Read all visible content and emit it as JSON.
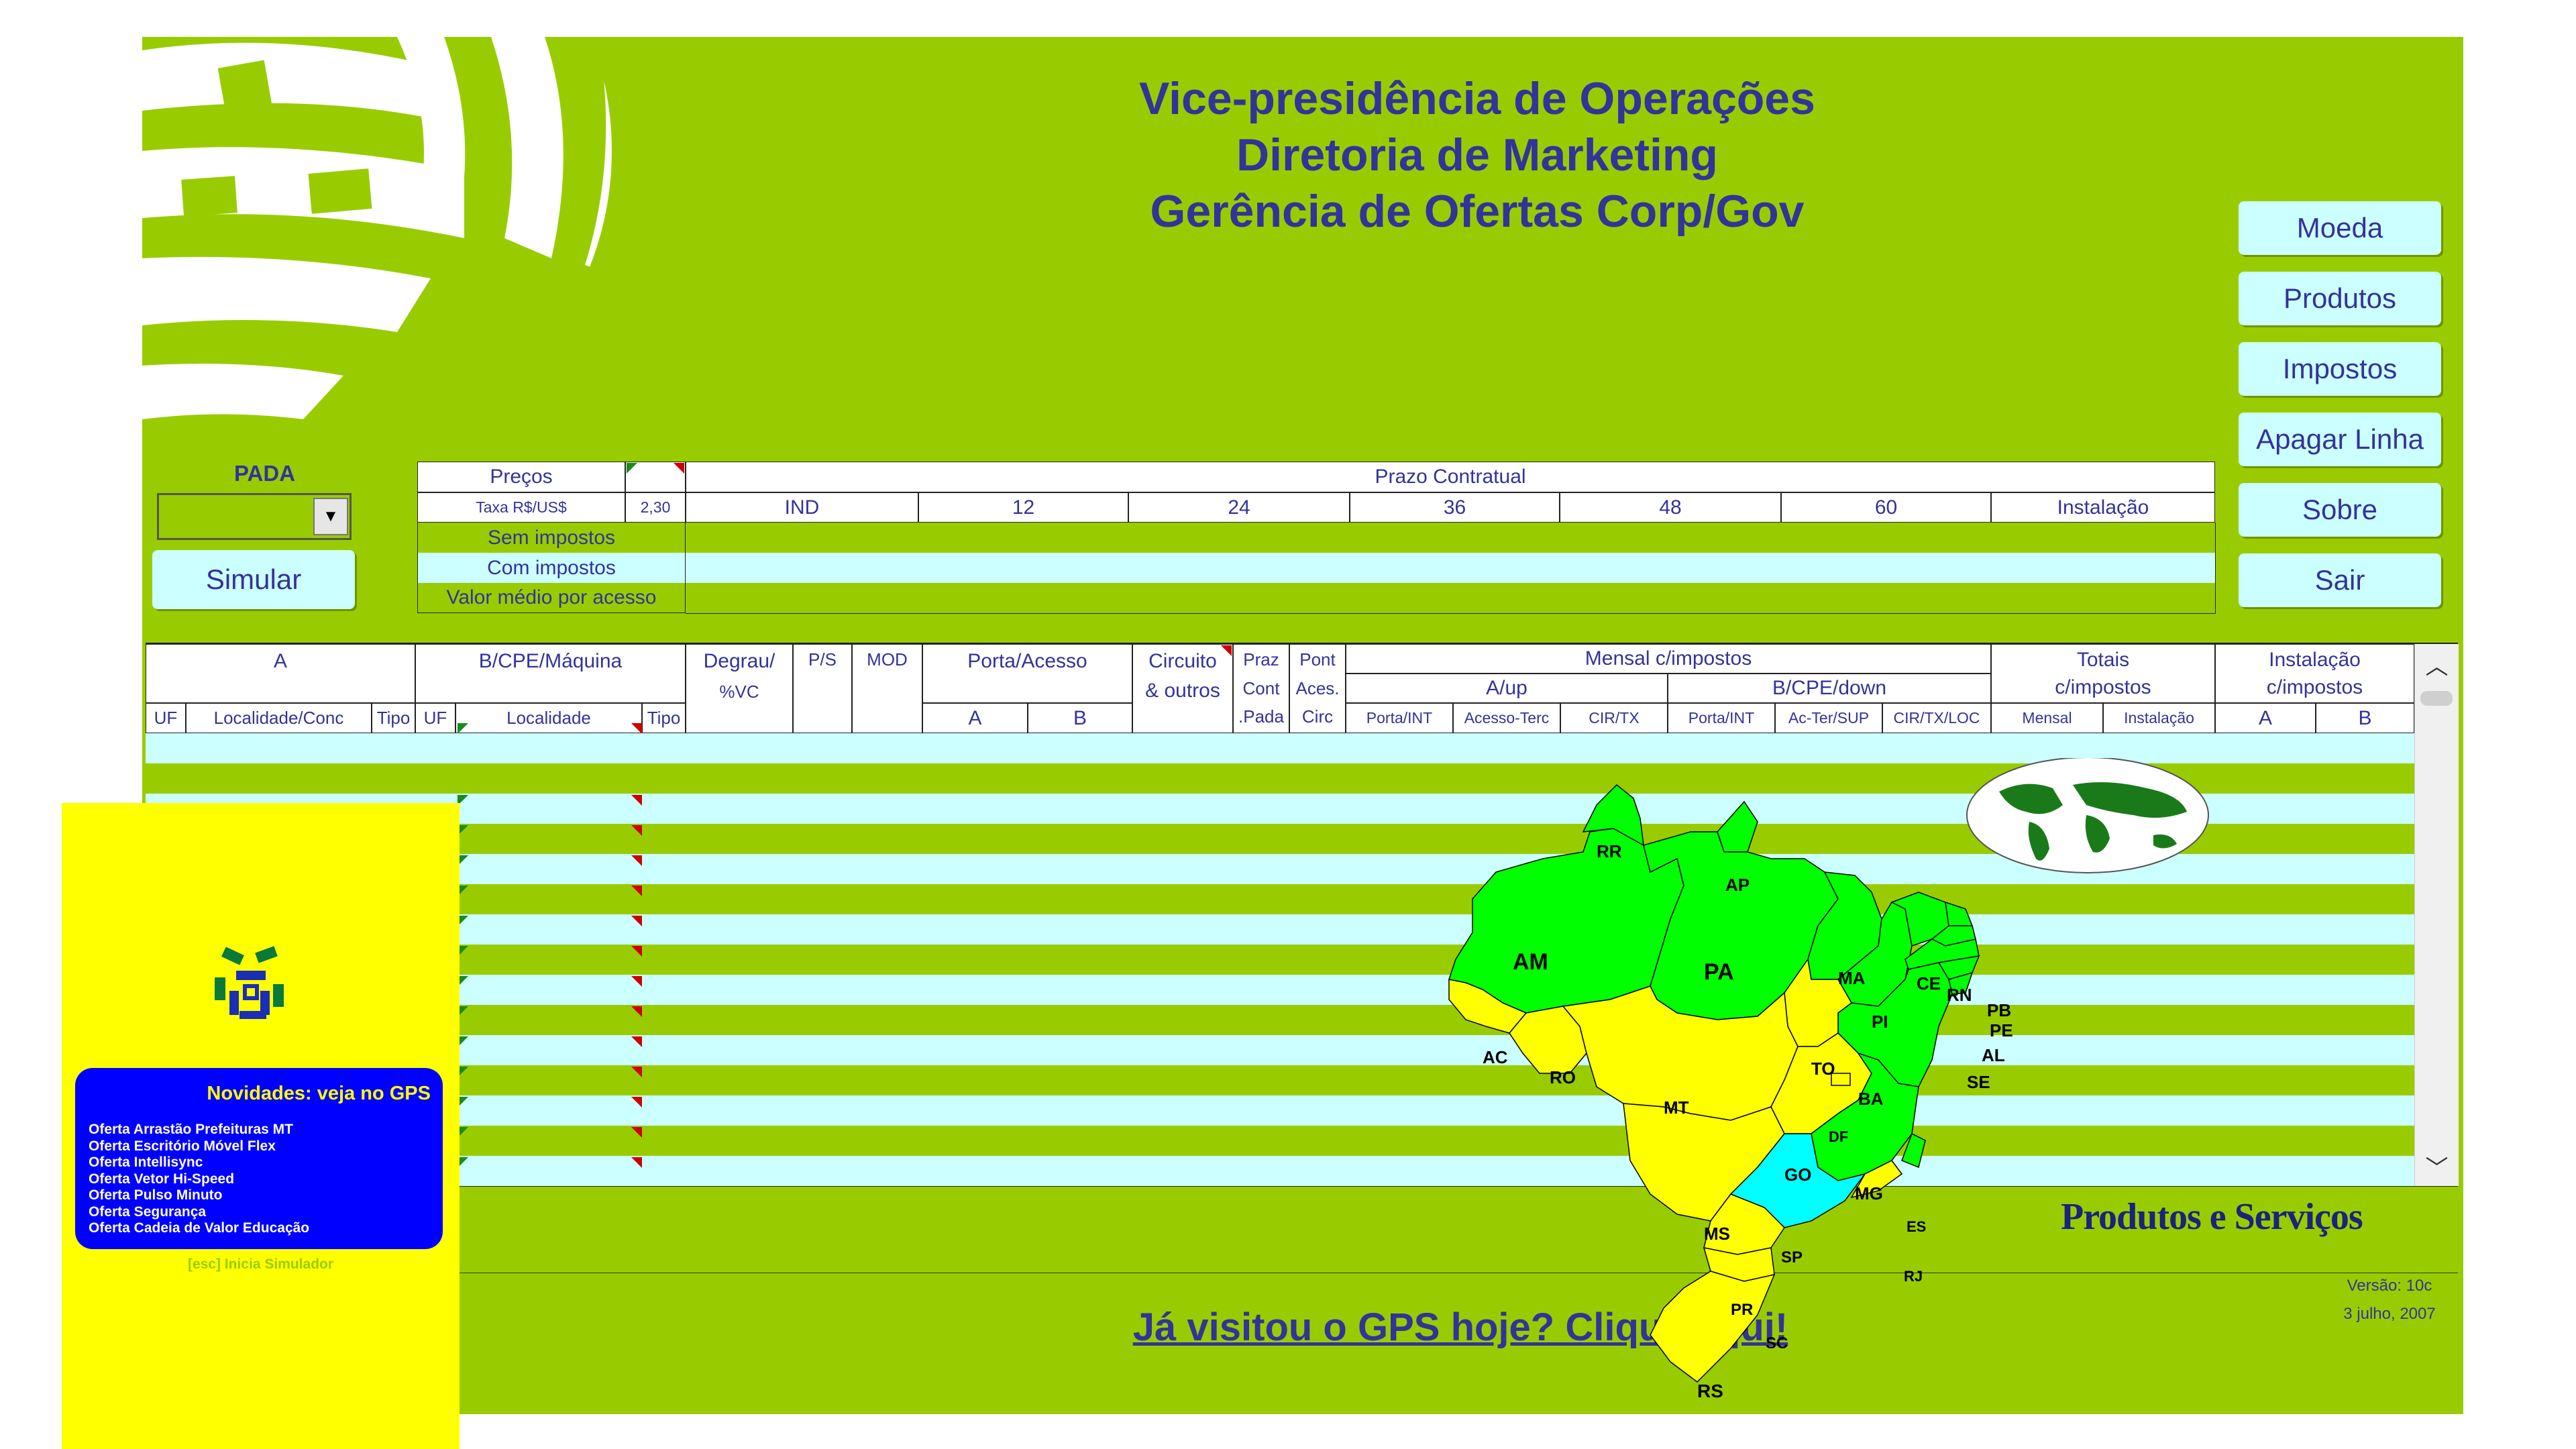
{
  "header": {
    "line1": "Vice-presidência de Operações",
    "line2": "Diretoria de Marketing",
    "line3": "Gerência de Ofertas Corp/Gov"
  },
  "right_buttons": [
    "Moeda",
    "Produtos",
    "Impostos",
    "Apagar Linha",
    "Sobre",
    "Sair"
  ],
  "left_panel": {
    "pada_label": "PADA",
    "pada_value": "",
    "simular_label": "Simular"
  },
  "prices_table": {
    "precos_label": "Preços",
    "taxa_label": "Taxa R$/US$",
    "taxa_value": "2,30",
    "prazo_label": "Prazo Contratual",
    "columns": [
      "IND",
      "12",
      "24",
      "36",
      "48",
      "60",
      "Instalação"
    ],
    "rows": [
      "Sem impostos",
      "Com impostos",
      "Valor médio por acesso"
    ]
  },
  "main_table": {
    "a_label": "A",
    "b_label": "B/CPE/Máquina",
    "degrau_label1": "Degrau/",
    "degrau_label2": "%VC",
    "ps_label": "P/S",
    "mod_label": "MOD",
    "porta_label": "Porta/Acesso",
    "circuito_label1": "Circuito",
    "circuito_label2": "& outros",
    "praz_label1": "Praz",
    "praz_label2": "Cont",
    "praz_label3": ".Pada",
    "pont_label1": "Pont",
    "pont_label2": "Aces.",
    "pont_label3": "Circ",
    "mensal_label": "Mensal c/impostos",
    "aup_label": "A/up",
    "bdown_label": "B/CPE/down",
    "totais_label1": "Totais",
    "totais_label2": "c/impostos",
    "instal_label1": "Instalação",
    "instal_label2": "c/impostos",
    "sub_uf_a": "UF",
    "sub_localidade_a": "Localidade/Conc",
    "sub_tipo_a": "Tipo",
    "sub_uf_b": "UF",
    "sub_localidade_b": "Localidade",
    "sub_tipo_b": "Tipo",
    "sub_porta_a": "A",
    "sub_porta_b": "B",
    "sub_aup": [
      "Porta/INT",
      "Acesso-Terc",
      "CIR/TX"
    ],
    "sub_bdown": [
      "Porta/INT",
      "Ac-Ter/SUP",
      "CIR/TX/LOC"
    ],
    "sub_totais": [
      "Mensal",
      "Instalação"
    ],
    "sub_instal": [
      "A",
      "B"
    ]
  },
  "map": {
    "states": [
      "RR",
      "AP",
      "AM",
      "PA",
      "MA",
      "CE",
      "RN",
      "PB",
      "PE",
      "AL",
      "SE",
      "PI",
      "AC",
      "RO",
      "TO",
      "MT",
      "BA",
      "DF",
      "GO",
      "MG",
      "ES",
      "MS",
      "SP",
      "RJ",
      "PR",
      "SC",
      "RS"
    ],
    "colors": {
      "green": "#00ff00",
      "yellow": "#ffff00",
      "cyan": "#00ffff"
    }
  },
  "produtos_servicos": "Produtos e Serviços",
  "footer": {
    "link": "Já visitou o GPS hoje? Clique aqui!",
    "version": "Versão: 10c",
    "date": "3 julho, 2007"
  },
  "splash": {
    "news_title": "Novidades: veja no GPS",
    "news_items": [
      "Oferta Arrastão Prefeituras MT",
      "Oferta Escritório Móvel Flex",
      "Oferta Intellisync",
      "Oferta Vetor Hi-Speed",
      "Oferta Pulso Minuto",
      "Oferta Segurança",
      "Oferta Cadeia de Valor Educação"
    ],
    "esc_hint": "[esc] Inicia Simulador"
  }
}
